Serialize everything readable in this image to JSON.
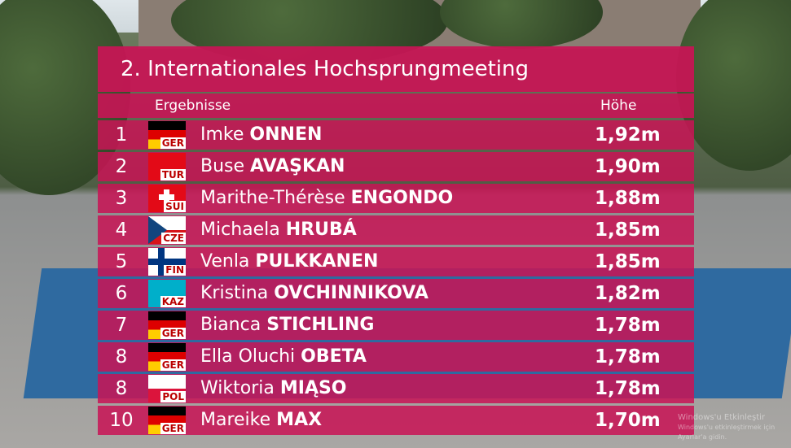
{
  "title": "2. Internationales Hochsprungmeeting",
  "header": {
    "results": "Ergebnisse",
    "height": "Höhe"
  },
  "rows": [
    {
      "rank": "1",
      "country": "GER",
      "first_name": "Imke",
      "last_name": "ONNEN",
      "height": "1,92m"
    },
    {
      "rank": "2",
      "country": "TUR",
      "first_name": "Buse",
      "last_name": "AVAŞKAN",
      "height": "1,90m"
    },
    {
      "rank": "3",
      "country": "SUI",
      "first_name": "Marithe-Thérèse",
      "last_name": "ENGONDO",
      "height": "1,88m"
    },
    {
      "rank": "4",
      "country": "CZE",
      "first_name": "Michaela",
      "last_name": "HRUBÁ",
      "height": "1,85m"
    },
    {
      "rank": "5",
      "country": "FIN",
      "first_name": "Venla",
      "last_name": "PULKKANEN",
      "height": "1,85m"
    },
    {
      "rank": "6",
      "country": "KAZ",
      "first_name": "Kristina",
      "last_name": "OVCHINNIKOVA",
      "height": "1,82m"
    },
    {
      "rank": "7",
      "country": "GER",
      "first_name": "Bianca",
      "last_name": "STICHLING",
      "height": "1,78m"
    },
    {
      "rank": "8",
      "country": "GER",
      "first_name": "Ella Oluchi",
      "last_name": "OBETA",
      "height": "1,78m"
    },
    {
      "rank": "8",
      "country": "POL",
      "first_name": "Wiktoria",
      "last_name": "MIĄSO",
      "height": "1,78m"
    },
    {
      "rank": "10",
      "country": "GER",
      "first_name": "Mareike",
      "last_name": "MAX",
      "height": "1,70m"
    }
  ],
  "watermark": {
    "line1": "Windows'u Etkinleştir",
    "line2": "Windows'u etkinleştirmek için Ayarlar'a gidin."
  }
}
